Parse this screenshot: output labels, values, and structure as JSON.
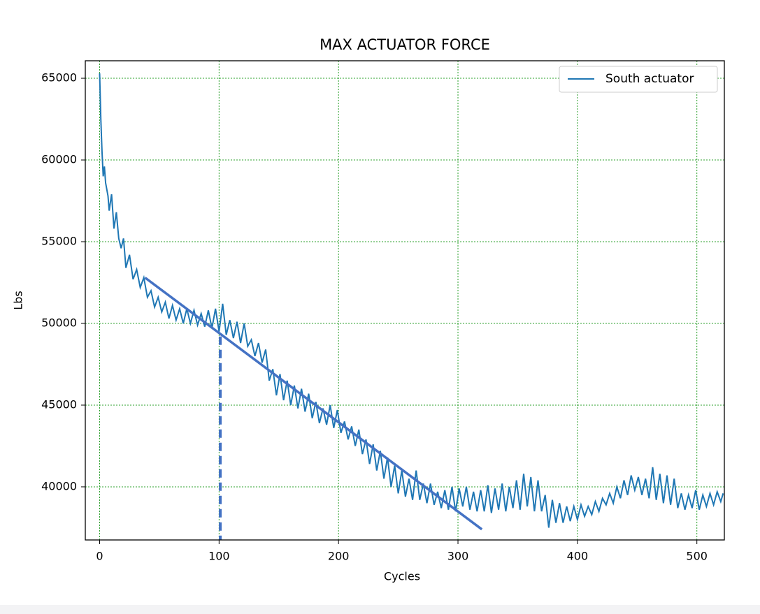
{
  "chart_data": {
    "type": "line",
    "title": "MAX ACTUATOR FORCE",
    "x_label": "Cycles",
    "y_label": "Lbs",
    "x": [
      0,
      1,
      2,
      3,
      4,
      5,
      7,
      8,
      10,
      12,
      14,
      16,
      18,
      20,
      22,
      25,
      28,
      31,
      34,
      37,
      40,
      43,
      46,
      49,
      52,
      55,
      58,
      61,
      64,
      67,
      70,
      73,
      76,
      79,
      82,
      85,
      88,
      91,
      94,
      97,
      100,
      103,
      106,
      109,
      112,
      115,
      118,
      121,
      124,
      127,
      130,
      133,
      136,
      139,
      142,
      145,
      148,
      151,
      154,
      157,
      160,
      163,
      166,
      169,
      172,
      175,
      178,
      181,
      184,
      187,
      190,
      193,
      196,
      199,
      202,
      205,
      208,
      211,
      214,
      217,
      220,
      223,
      226,
      229,
      232,
      235,
      238,
      241,
      244,
      247,
      250,
      253,
      256,
      259,
      262,
      265,
      268,
      271,
      274,
      277,
      280,
      283,
      286,
      289,
      292,
      295,
      298,
      301,
      304,
      307,
      310,
      313,
      316,
      319,
      322,
      325,
      328,
      331,
      334,
      337,
      340,
      343,
      346,
      349,
      352,
      355,
      358,
      361,
      364,
      367,
      370,
      373,
      376,
      379,
      382,
      385,
      388,
      391,
      394,
      397,
      400,
      403,
      406,
      409,
      412,
      415,
      418,
      421,
      424,
      427,
      430,
      433,
      436,
      439,
      442,
      445,
      448,
      451,
      454,
      457,
      460,
      463,
      466,
      469,
      472,
      475,
      478,
      481,
      484,
      487,
      490,
      493,
      496,
      499,
      502,
      505,
      508,
      511,
      514,
      517,
      520,
      522
    ],
    "series": [
      {
        "name": "South actuator",
        "color": "#1f77b4",
        "values": [
          65300,
          62500,
          60500,
          59000,
          59600,
          58600,
          57800,
          56900,
          57900,
          55800,
          56800,
          55200,
          54600,
          55200,
          53400,
          54200,
          52700,
          53300,
          52200,
          52800,
          51600,
          52000,
          51000,
          51600,
          50700,
          51300,
          50300,
          51100,
          50200,
          50900,
          50000,
          50900,
          50000,
          50800,
          49900,
          50600,
          49800,
          50800,
          49700,
          50900,
          49500,
          51200,
          49300,
          50200,
          49100,
          50100,
          48800,
          50000,
          48600,
          49000,
          48000,
          48800,
          47600,
          48400,
          46500,
          47200,
          45600,
          46900,
          45300,
          46500,
          45000,
          46200,
          44800,
          46000,
          44600,
          45700,
          44200,
          45200,
          43900,
          44800,
          43800,
          45000,
          43600,
          44700,
          43300,
          44000,
          42900,
          43700,
          42500,
          43500,
          42000,
          42900,
          41400,
          42600,
          41000,
          42200,
          40500,
          41800,
          40000,
          41300,
          39600,
          41000,
          39400,
          40500,
          39200,
          41000,
          39200,
          40200,
          39000,
          40200,
          38900,
          39700,
          38700,
          39800,
          38600,
          40000,
          38500,
          39900,
          38800,
          40000,
          38600,
          39700,
          38500,
          39800,
          38500,
          40100,
          38400,
          39900,
          38600,
          40200,
          38500,
          40000,
          38700,
          40400,
          38600,
          40800,
          38800,
          40600,
          38500,
          40400,
          38500,
          39500,
          37500,
          39200,
          37800,
          39000,
          37800,
          38800,
          37900,
          38800,
          38000,
          38900,
          38200,
          38800,
          38300,
          39100,
          38500,
          39300,
          38900,
          39600,
          39000,
          40000,
          39300,
          40400,
          39500,
          40700,
          39800,
          40600,
          39500,
          40500,
          39300,
          41200,
          39200,
          40800,
          39000,
          40700,
          38900,
          40500,
          38700,
          39600,
          38600,
          39500,
          38700,
          39800,
          38600,
          39500,
          38800,
          39600,
          38900,
          39700,
          39100,
          39600
        ]
      }
    ],
    "trend_line": {
      "x": [
        38,
        320
      ],
      "y": [
        52800,
        37400
      ],
      "color": "#4472c4"
    },
    "marker_line": {
      "x": 101,
      "y": 49200,
      "color": "#4472c4"
    },
    "xlim": [
      -12,
      523
    ],
    "ylim": [
      36750,
      66070
    ],
    "xticks": [
      0,
      100,
      200,
      300,
      400,
      500
    ],
    "yticks": [
      40000,
      45000,
      50000,
      55000,
      60000,
      65000
    ],
    "grid": true,
    "grid_color": "#2ca02c",
    "legend": "upper right"
  }
}
